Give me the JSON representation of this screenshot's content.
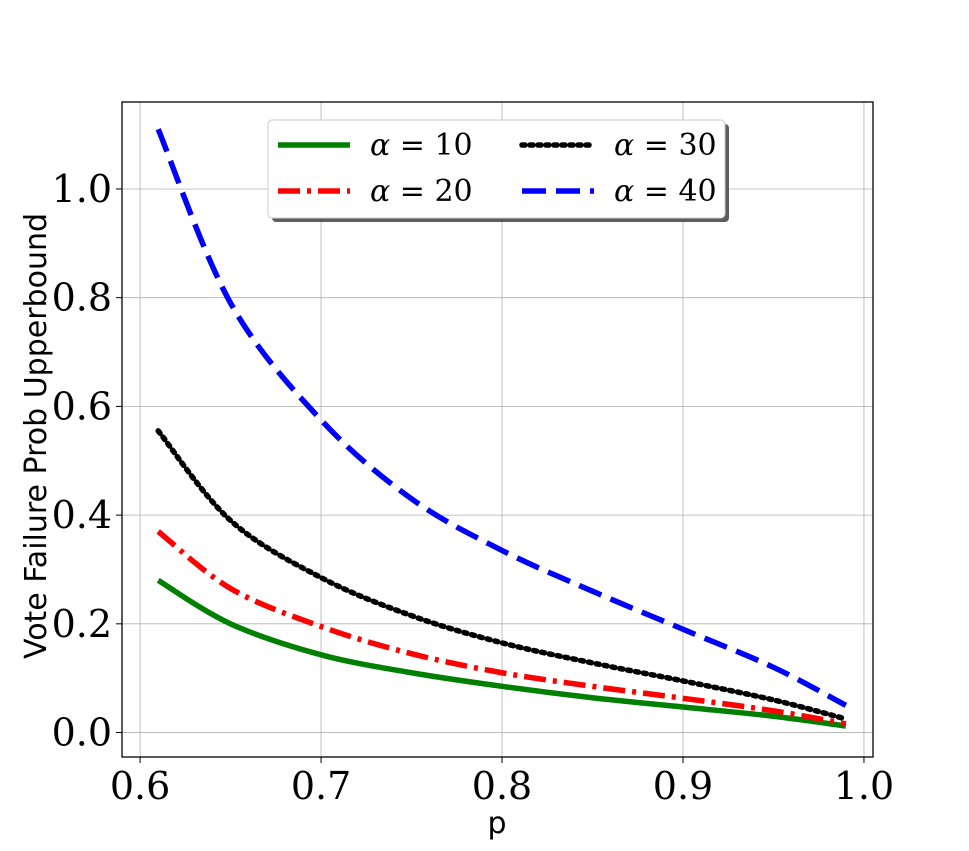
{
  "chart_data": {
    "type": "line",
    "title": "",
    "xlabel": "p",
    "ylabel": "Vote Failure Prob Upperbound",
    "xlim": [
      0.59,
      1.005
    ],
    "ylim": [
      -0.045,
      1.16
    ],
    "xticks": [
      "0.6",
      "0.7",
      "0.8",
      "0.9",
      "1.0"
    ],
    "xtick_values": [
      0.6,
      0.7,
      0.8,
      0.9,
      1.0
    ],
    "yticks": [
      "0.0",
      "0.2",
      "0.4",
      "0.6",
      "0.8",
      "1.0"
    ],
    "ytick_values": [
      0.0,
      0.2,
      0.4,
      0.6,
      0.8,
      1.0
    ],
    "grid": true,
    "legend_position": "top-center",
    "x": [
      0.61,
      0.65,
      0.7,
      0.75,
      0.8,
      0.85,
      0.9,
      0.95,
      0.99
    ],
    "series": [
      {
        "name": "α = 10",
        "label_symbol": "α",
        "label_value": "= 10",
        "color": "#008000",
        "style": "solid",
        "values": [
          0.28,
          0.2,
          0.143,
          0.11,
          0.085,
          0.064,
          0.047,
          0.03,
          0.012
        ]
      },
      {
        "name": "α = 20",
        "label_symbol": "α",
        "label_value": "= 20",
        "color": "#ff0000",
        "style": "dashdot",
        "values": [
          0.37,
          0.265,
          0.195,
          0.145,
          0.11,
          0.085,
          0.063,
          0.04,
          0.016
        ]
      },
      {
        "name": "α = 30",
        "label_symbol": "α",
        "label_value": "= 30",
        "color": "#000000",
        "style": "dotted",
        "values": [
          0.555,
          0.39,
          0.285,
          0.215,
          0.165,
          0.128,
          0.095,
          0.06,
          0.025
        ]
      },
      {
        "name": "α = 40",
        "label_symbol": "α",
        "label_value": "= 40",
        "color": "#0000ff",
        "style": "dashed",
        "values": [
          1.11,
          0.79,
          0.575,
          0.43,
          0.335,
          0.26,
          0.19,
          0.12,
          0.05
        ]
      }
    ]
  }
}
